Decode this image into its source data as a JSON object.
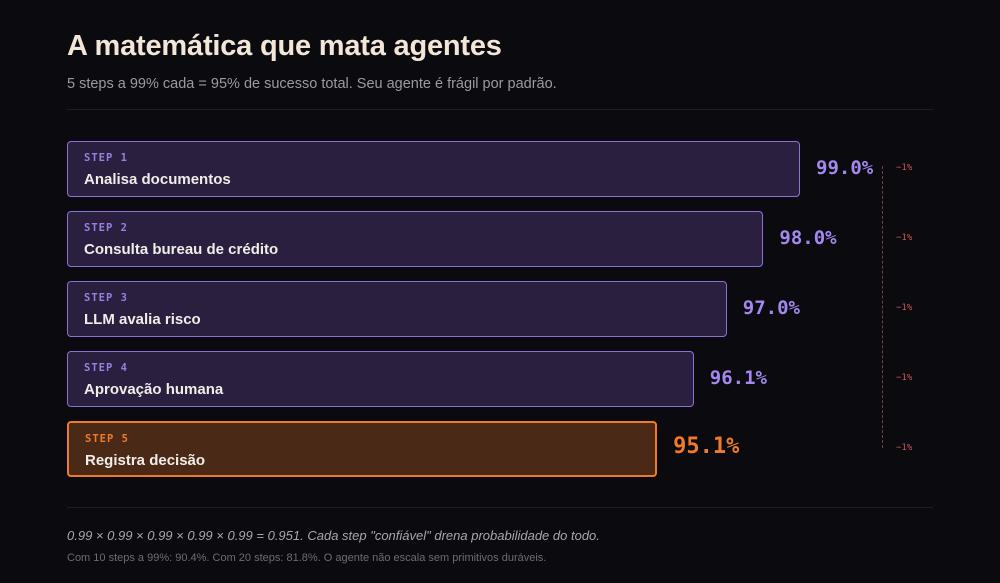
{
  "header": {
    "title": "A matemática que mata agentes",
    "subtitle": "5 steps a 99% cada = 95% de sucesso total. Seu agente é frágil por padrão."
  },
  "colors": {
    "step_accent": "#8d6fd6",
    "final_accent": "#f07a2b",
    "loss_color": "#c8545a"
  },
  "steps": [
    {
      "label": "STEP 1",
      "name": "Analisa documentos",
      "probability": 0.99,
      "percent": "99.0%",
      "loss": "−1%"
    },
    {
      "label": "STEP 2",
      "name": "Consulta bureau de crédito",
      "probability": 0.98,
      "percent": "98.0%",
      "loss": "−1%"
    },
    {
      "label": "STEP 3",
      "name": "LLM avalia risco",
      "probability": 0.97,
      "percent": "97.0%",
      "loss": "−1%"
    },
    {
      "label": "STEP 4",
      "name": "Aprovação humana",
      "probability": 0.961,
      "percent": "96.1%",
      "loss": "−1%"
    },
    {
      "label": "STEP 5",
      "name": "Registra decisão",
      "probability": 0.951,
      "percent": "95.1%",
      "loss": "−1%"
    }
  ],
  "footer": {
    "formula": "0.99 × 0.99 × 0.99 × 0.99 × 0.99 = 0.951. Cada step \"confiável\" drena probabilidade do todo.",
    "note": "Com 10 steps a 99%: 90.4%. Com 20 steps: 81.8%. O agente não escala sem primitivos duráveis."
  }
}
